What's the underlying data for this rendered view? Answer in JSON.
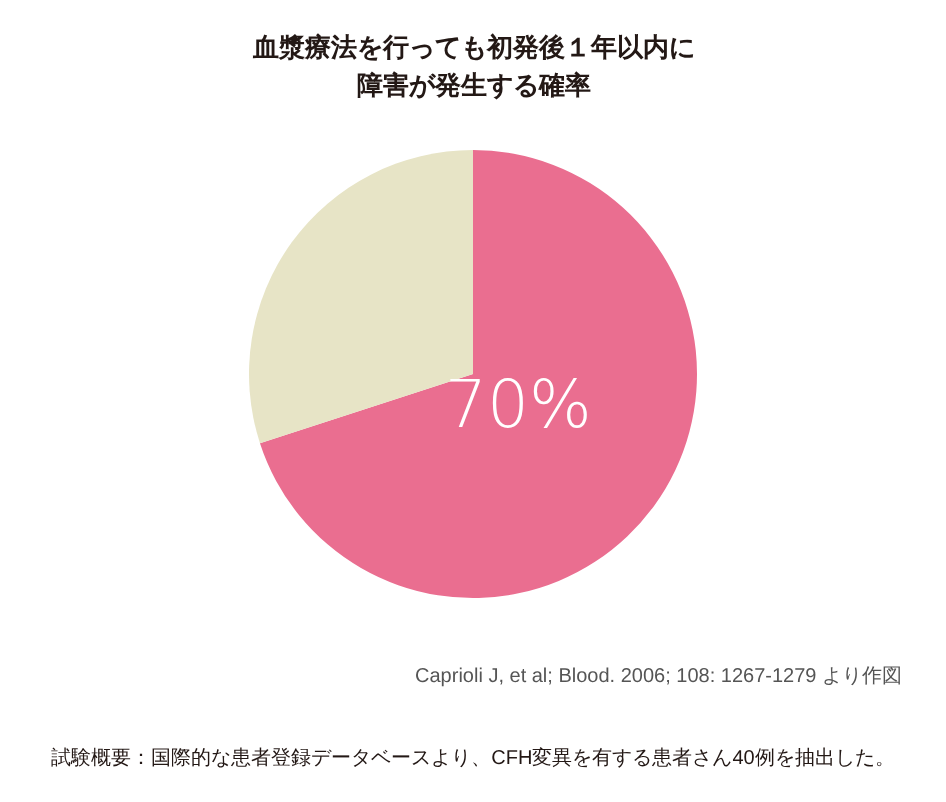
{
  "chart_data": {
    "type": "pie",
    "title": "血漿療法を行っても初発後１年以内に障害が発生する確率",
    "categories": [
      null,
      null
    ],
    "values": [
      70,
      30
    ],
    "colors": [
      "#ea6e90",
      "#e7e4c6"
    ],
    "value_labels": [
      "70%",
      null
    ],
    "annotations": [
      "Caprioli J, et al; Blood. 2006; 108: 1267-1279 より作図",
      "試験概要：国際的な患者登録データベースより、CFH変異を有する患者さん40例を抽出した。"
    ]
  }
}
